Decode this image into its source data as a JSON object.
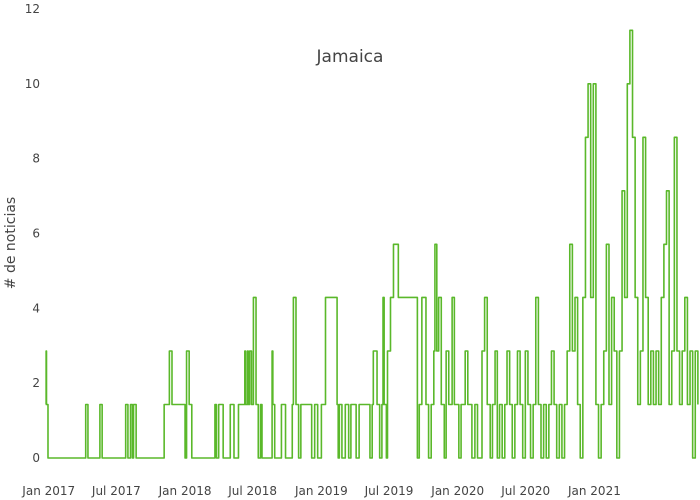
{
  "chart_data": {
    "type": "line",
    "title": "Jamaica",
    "xlabel": "",
    "ylabel": "# de noticias",
    "ylim": [
      0,
      12
    ],
    "y_ticks": [
      0,
      2,
      4,
      6,
      8,
      10,
      12
    ],
    "x_range": [
      "2016-12-22",
      "2021-10-08"
    ],
    "x_ticks": [
      {
        "date": "2017-01-01",
        "label": "Jan 2017"
      },
      {
        "date": "2017-07-01",
        "label": "Jul 2017"
      },
      {
        "date": "2018-01-01",
        "label": "Jan 2018"
      },
      {
        "date": "2018-07-01",
        "label": "Jul 2018"
      },
      {
        "date": "2019-01-01",
        "label": "Jan 2019"
      },
      {
        "date": "2019-07-01",
        "label": "Jul 2019"
      },
      {
        "date": "2020-01-01",
        "label": "Jan 2020"
      },
      {
        "date": "2020-07-01",
        "label": "Jul 2020"
      },
      {
        "date": "2021-01-01",
        "label": "Jan 2021"
      }
    ],
    "grid": false,
    "line_shape": "step",
    "line_color": "#5ab82a",
    "series": [
      {
        "x": [
          "2016-12-24",
          "2016-12-25",
          "2016-12-26",
          "2016-12-27",
          "2016-12-30",
          "2017-01-02",
          "2017-04-10",
          "2017-04-16",
          "2017-05-18",
          "2017-05-24",
          "2017-07-26",
          "2017-08-01",
          "2017-08-08",
          "2017-08-13",
          "2017-08-16",
          "2017-08-23",
          "2017-11-06",
          "2017-11-20",
          "2017-11-27",
          "2018-01-01",
          "2018-01-05",
          "2018-01-12",
          "2018-01-19",
          "2018-03-22",
          "2018-03-26",
          "2018-04-01",
          "2018-04-13",
          "2018-05-02",
          "2018-05-12",
          "2018-05-24",
          "2018-06-10",
          "2018-06-12",
          "2018-06-17",
          "2018-06-19",
          "2018-06-21",
          "2018-06-23",
          "2018-06-28",
          "2018-07-03",
          "2018-07-10",
          "2018-07-16",
          "2018-07-22",
          "2018-07-26",
          "2018-08-22",
          "2018-08-24",
          "2018-08-29",
          "2018-09-16",
          "2018-09-27",
          "2018-10-15",
          "2018-10-18",
          "2018-10-25",
          "2018-11-01",
          "2018-11-07",
          "2018-12-06",
          "2018-12-14",
          "2018-12-22",
          "2019-01-01",
          "2019-01-12",
          "2019-02-12",
          "2019-02-15",
          "2019-02-18",
          "2019-02-25",
          "2019-03-06",
          "2019-03-15",
          "2019-03-21",
          "2019-04-04",
          "2019-04-12",
          "2019-05-11",
          "2019-05-17",
          "2019-05-20",
          "2019-05-30",
          "2019-06-06",
          "2019-06-12",
          "2019-06-15",
          "2019-06-18",
          "2019-06-24",
          "2019-06-27",
          "2019-07-05",
          "2019-07-13",
          "2019-07-26",
          "2019-09-15",
          "2019-09-20",
          "2019-09-27",
          "2019-10-08",
          "2019-10-15",
          "2019-10-22",
          "2019-10-29",
          "2019-11-01",
          "2019-11-06",
          "2019-11-11",
          "2019-11-18",
          "2019-11-26",
          "2019-12-01",
          "2019-12-08",
          "2019-12-17",
          "2019-12-23",
          "2020-01-04",
          "2020-01-10",
          "2020-01-21",
          "2020-01-28",
          "2020-02-08",
          "2020-02-16",
          "2020-02-23",
          "2020-03-06",
          "2020-03-13",
          "2020-03-20",
          "2020-03-28",
          "2020-04-03",
          "2020-04-10",
          "2020-04-16",
          "2020-04-22",
          "2020-04-29",
          "2020-05-06",
          "2020-05-12",
          "2020-05-19",
          "2020-05-26",
          "2020-06-02",
          "2020-06-09",
          "2020-06-16",
          "2020-06-23",
          "2020-06-30",
          "2020-07-07",
          "2020-07-14",
          "2020-07-21",
          "2020-07-28",
          "2020-08-04",
          "2020-08-11",
          "2020-08-18",
          "2020-08-25",
          "2020-09-01",
          "2020-09-08",
          "2020-09-15",
          "2020-09-22",
          "2020-09-29",
          "2020-10-06",
          "2020-10-13",
          "2020-10-20",
          "2020-10-27",
          "2020-11-03",
          "2020-11-10",
          "2020-11-17",
          "2020-11-24",
          "2020-12-01",
          "2020-12-08",
          "2020-12-15",
          "2020-12-22",
          "2020-12-29",
          "2021-01-05",
          "2021-01-12",
          "2021-01-19",
          "2021-01-26",
          "2021-02-02",
          "2021-02-09",
          "2021-02-16",
          "2021-02-23",
          "2021-03-02",
          "2021-03-09",
          "2021-03-16",
          "2021-03-23",
          "2021-03-30",
          "2021-04-06",
          "2021-04-13",
          "2021-04-20",
          "2021-04-27",
          "2021-05-04",
          "2021-05-11",
          "2021-05-18",
          "2021-05-25",
          "2021-06-01",
          "2021-06-08",
          "2021-06-15",
          "2021-06-22",
          "2021-06-29",
          "2021-07-06",
          "2021-07-13",
          "2021-07-20",
          "2021-07-27",
          "2021-08-03",
          "2021-08-10",
          "2021-08-17",
          "2021-08-24",
          "2021-08-31",
          "2021-09-07",
          "2021-09-14",
          "2021-09-21",
          "2021-09-28",
          "2021-10-05"
        ],
        "y": [
          1.43,
          2.86,
          1.43,
          1.43,
          0,
          0,
          1.43,
          0,
          1.43,
          0,
          1.43,
          0,
          1.43,
          0,
          1.43,
          0,
          1.43,
          2.86,
          1.43,
          0,
          2.86,
          1.43,
          0,
          1.43,
          0,
          1.43,
          0,
          1.43,
          0,
          1.43,
          2.86,
          1.43,
          2.86,
          1.43,
          1.43,
          2.86,
          1.43,
          4.29,
          1.43,
          0,
          1.43,
          0,
          2.86,
          1.43,
          0,
          1.43,
          0,
          1.43,
          4.29,
          1.43,
          0,
          1.43,
          0,
          1.43,
          0,
          1.43,
          4.29,
          1.43,
          0,
          1.43,
          0,
          1.43,
          0,
          1.43,
          0,
          1.43,
          0,
          1.43,
          2.86,
          1.43,
          0,
          1.43,
          4.29,
          1.43,
          0,
          2.86,
          4.29,
          5.71,
          4.29,
          0,
          1.43,
          4.29,
          1.43,
          0,
          1.43,
          2.86,
          5.71,
          2.86,
          4.29,
          1.43,
          0,
          2.86,
          1.43,
          4.29,
          1.43,
          0,
          1.43,
          2.86,
          1.43,
          0,
          1.43,
          0,
          2.86,
          4.29,
          1.43,
          0,
          1.43,
          2.86,
          0,
          1.43,
          0,
          1.43,
          2.86,
          1.43,
          0,
          1.43,
          2.86,
          1.43,
          0,
          2.86,
          1.43,
          0,
          1.43,
          4.29,
          1.43,
          0,
          1.43,
          0,
          1.43,
          2.86,
          1.43,
          0,
          1.43,
          0,
          1.43,
          2.86,
          5.71,
          2.86,
          4.29,
          1.43,
          0,
          4.29,
          8.57,
          10,
          4.29,
          10,
          1.43,
          0,
          1.43,
          2.86,
          5.71,
          1.43,
          4.29,
          2.86,
          0,
          2.86,
          7.14,
          4.29,
          10,
          11.43,
          8.57,
          4.29,
          1.43,
          2.86,
          8.57,
          4.29,
          1.43,
          2.86,
          1.43,
          2.86,
          1.43,
          4.29,
          5.71,
          7.14,
          1.43,
          2.86,
          8.57,
          2.86,
          1.43,
          2.86,
          4.29,
          1.43,
          2.86,
          0,
          2.86,
          1.43
        ]
      }
    ]
  }
}
